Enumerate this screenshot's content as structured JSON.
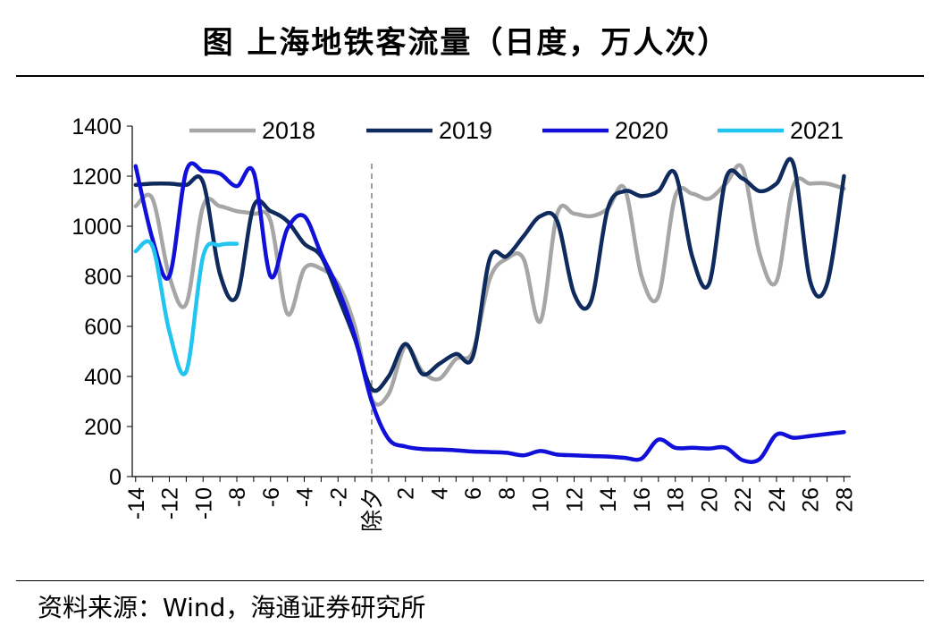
{
  "title": "图  上海地铁客流量（日度，万人次）",
  "source": "资料来源：Wind，海通证券研究所",
  "chart_data": {
    "type": "line",
    "x": [
      -14,
      -13,
      -12,
      -11,
      -10,
      -9,
      -8,
      -7,
      -6,
      -5,
      -4,
      -3,
      -2,
      -1,
      0,
      1,
      2,
      3,
      4,
      5,
      6,
      7,
      8,
      9,
      10,
      11,
      12,
      13,
      14,
      15,
      16,
      17,
      18,
      19,
      20,
      21,
      22,
      23,
      24,
      25,
      26,
      27,
      28
    ],
    "xlim": [
      -14.2,
      28.4
    ],
    "x_ticks": [
      -14,
      -12,
      -10,
      -8,
      -6,
      -4,
      -2,
      0,
      2,
      4,
      6,
      8,
      10,
      12,
      14,
      16,
      18,
      20,
      22,
      24,
      26,
      28
    ],
    "x_tick_labels": [
      "-14",
      "-12",
      "-10",
      "-8",
      "-6",
      "-4",
      "-2",
      "除夕",
      "2",
      "4",
      "6",
      "8",
      "10",
      "12",
      "14",
      "16",
      "18",
      "20",
      "22",
      "24",
      "26",
      "28"
    ],
    "ylim": [
      0,
      1400
    ],
    "y_ticks": [
      0,
      200,
      400,
      600,
      800,
      1000,
      1200,
      1400
    ],
    "reference_line_x": 0,
    "legend_position": "top",
    "series": [
      {
        "name": "2018",
        "color": "#a6a6a6",
        "points": [
          [
            -14,
            1080
          ],
          [
            -13,
            1110
          ],
          [
            -12,
            800
          ],
          [
            -11,
            690
          ],
          [
            -10,
            1080
          ],
          [
            -9,
            1080
          ],
          [
            -8,
            1060
          ],
          [
            -7,
            1050
          ],
          [
            -6,
            1020
          ],
          [
            -5,
            650
          ],
          [
            -4,
            830
          ],
          [
            -3,
            830
          ],
          [
            -2,
            770
          ],
          [
            -1,
            600
          ],
          [
            0,
            310
          ],
          [
            1,
            330
          ],
          [
            2,
            520
          ],
          [
            3,
            420
          ],
          [
            4,
            390
          ],
          [
            5,
            470
          ],
          [
            6,
            500
          ],
          [
            7,
            790
          ],
          [
            8,
            870
          ],
          [
            9,
            870
          ],
          [
            10,
            620
          ],
          [
            11,
            1050
          ],
          [
            12,
            1050
          ],
          [
            13,
            1040
          ],
          [
            14,
            1070
          ],
          [
            15,
            1150
          ],
          [
            16,
            800
          ],
          [
            17,
            720
          ],
          [
            18,
            1120
          ],
          [
            19,
            1130
          ],
          [
            20,
            1110
          ],
          [
            21,
            1170
          ],
          [
            22,
            1230
          ],
          [
            23,
            890
          ],
          [
            24,
            780
          ],
          [
            25,
            1160
          ],
          [
            26,
            1170
          ],
          [
            27,
            1170
          ],
          [
            28,
            1150
          ]
        ]
      },
      {
        "name": "2019",
        "color": "#0f2a5c",
        "points": [
          [
            -14,
            1165
          ],
          [
            -13,
            1170
          ],
          [
            -12,
            1170
          ],
          [
            -11,
            1165
          ],
          [
            -10,
            1175
          ],
          [
            -9,
            810
          ],
          [
            -8,
            720
          ],
          [
            -7,
            1080
          ],
          [
            -6,
            1060
          ],
          [
            -5,
            1020
          ],
          [
            -4,
            930
          ],
          [
            -3,
            880
          ],
          [
            -2,
            720
          ],
          [
            -1,
            550
          ],
          [
            0,
            350
          ],
          [
            1,
            400
          ],
          [
            2,
            530
          ],
          [
            3,
            410
          ],
          [
            4,
            450
          ],
          [
            5,
            490
          ],
          [
            6,
            480
          ],
          [
            7,
            870
          ],
          [
            8,
            880
          ],
          [
            9,
            960
          ],
          [
            10,
            1040
          ],
          [
            11,
            1020
          ],
          [
            12,
            730
          ],
          [
            13,
            700
          ],
          [
            14,
            1070
          ],
          [
            15,
            1140
          ],
          [
            16,
            1120
          ],
          [
            17,
            1140
          ],
          [
            18,
            1210
          ],
          [
            19,
            880
          ],
          [
            20,
            770
          ],
          [
            21,
            1190
          ],
          [
            22,
            1190
          ],
          [
            23,
            1140
          ],
          [
            24,
            1170
          ],
          [
            25,
            1250
          ],
          [
            26,
            780
          ],
          [
            27,
            770
          ],
          [
            28,
            1200
          ]
        ]
      },
      {
        "name": "2020",
        "color": "#1010d8",
        "points": [
          [
            -14,
            1240
          ],
          [
            -13,
            950
          ],
          [
            -12,
            800
          ],
          [
            -11,
            1220
          ],
          [
            -10,
            1220
          ],
          [
            -9,
            1210
          ],
          [
            -8,
            1160
          ],
          [
            -7,
            1215
          ],
          [
            -6,
            800
          ],
          [
            -5,
            990
          ],
          [
            -4,
            1040
          ],
          [
            -3,
            890
          ],
          [
            -2,
            750
          ],
          [
            -1,
            560
          ],
          [
            0,
            300
          ],
          [
            1,
            150
          ],
          [
            2,
            120
          ],
          [
            3,
            110
          ],
          [
            4,
            108
          ],
          [
            5,
            105
          ],
          [
            6,
            100
          ],
          [
            7,
            98
          ],
          [
            8,
            95
          ],
          [
            9,
            85
          ],
          [
            10,
            102
          ],
          [
            11,
            88
          ],
          [
            12,
            85
          ],
          [
            13,
            82
          ],
          [
            14,
            80
          ],
          [
            15,
            75
          ],
          [
            16,
            72
          ],
          [
            17,
            148
          ],
          [
            18,
            115
          ],
          [
            19,
            115
          ],
          [
            20,
            112
          ],
          [
            21,
            115
          ],
          [
            22,
            65
          ],
          [
            23,
            70
          ],
          [
            24,
            168
          ],
          [
            25,
            155
          ],
          [
            26,
            162
          ],
          [
            27,
            170
          ],
          [
            28,
            178
          ]
        ]
      },
      {
        "name": "2021",
        "color": "#22c4f0",
        "points": [
          [
            -14,
            900
          ],
          [
            -13,
            920
          ],
          [
            -12,
            580
          ],
          [
            -11,
            420
          ],
          [
            -10,
            880
          ],
          [
            -9,
            925
          ],
          [
            -8,
            930
          ]
        ]
      }
    ]
  }
}
